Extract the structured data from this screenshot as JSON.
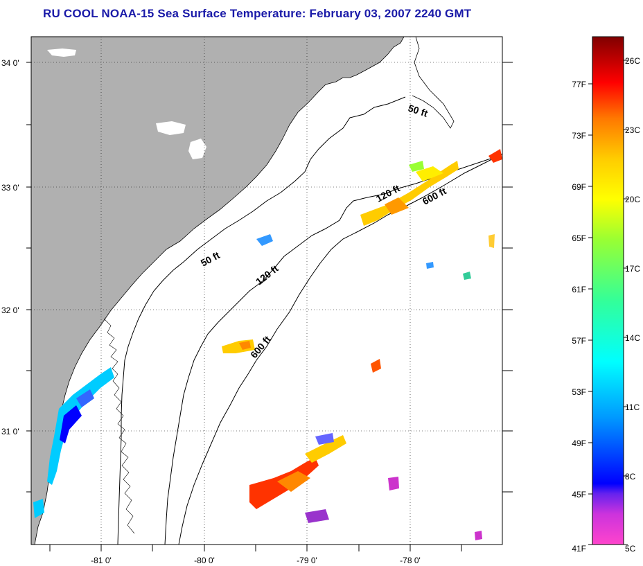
{
  "title": "RU COOL  NOAA-15  Sea Surface Temperature:  February 03, 2007 2240 GMT",
  "map": {
    "lat_labels": [
      "34 0'",
      "33 0'",
      "32 0'",
      "31 0'"
    ],
    "lon_labels": [
      "-81 0'",
      "-80 0'",
      "-79 0'",
      "-78 0'"
    ],
    "contours": [
      {
        "label": "50 ft"
      },
      {
        "label": "120 ft"
      },
      {
        "label": "600 ft"
      }
    ],
    "contour_labels": [
      "50 ft",
      "50 ft",
      "120 ft",
      "120 ft",
      "600 ft",
      "600 ft"
    ]
  },
  "colorbar": {
    "celsius_labels": [
      "26C",
      "23C",
      "20C",
      "17C",
      "14C",
      "11C",
      "8C",
      "5C"
    ],
    "fahrenheit_labels": [
      "77F",
      "73F",
      "69F",
      "65F",
      "61F",
      "57F",
      "53F",
      "49F",
      "45F",
      "41F"
    ],
    "celsius_range": [
      5,
      27.5
    ],
    "colors": [
      "#ff44cc",
      "#9933cc",
      "#0000ff",
      "#0099ff",
      "#00ffff",
      "#00ff99",
      "#99ff33",
      "#ffff00",
      "#ffcc00",
      "#ff8800",
      "#ff0000",
      "#cc0000",
      "#800000"
    ]
  }
}
